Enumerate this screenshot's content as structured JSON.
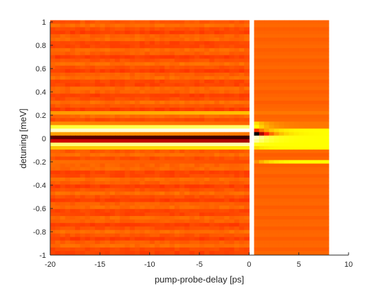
{
  "chart_data": {
    "type": "heatmap",
    "title": "",
    "xlabel": "pump-probe-delay [ps]",
    "ylabel": "detuning [meV]",
    "xlim": [
      -20,
      10
    ],
    "ylim": [
      -1,
      1
    ],
    "xticks": [
      "-20",
      "-15",
      "-10",
      "-5",
      "0",
      "5",
      "10"
    ],
    "yticks": [
      "1",
      "0.8",
      "0.6",
      "0.4",
      "0.2",
      "0",
      "-0.2",
      "-0.4",
      "-0.6",
      "-0.8",
      "-1"
    ],
    "data_x_extent": [
      -20,
      8
    ],
    "gap_x": [
      0,
      0.5
    ],
    "colormap": "hot",
    "grid": false,
    "colors": {
      "background": "#ffffff",
      "axis": "#262626",
      "baseline": "#ff5a12"
    },
    "description_bands": [
      {
        "y": 0.12,
        "pre": 0.52,
        "post": 0.7
      },
      {
        "y": 0.09,
        "pre": 0.86,
        "post": 0.75
      },
      {
        "y": 0.06,
        "pre": 1.0,
        "post": 0.45
      },
      {
        "y": 0.03,
        "pre": 0.55,
        "post": 0.0
      },
      {
        "y": 0.0,
        "pre": 0.08,
        "post": 0.95
      },
      {
        "y": -0.03,
        "pre": 0.25,
        "post": 0.9
      },
      {
        "y": -0.06,
        "pre": 0.92,
        "post": 0.78
      },
      {
        "y": -0.09,
        "pre": 0.72,
        "post": 0.7
      },
      {
        "y": 0.21,
        "pre": 0.66,
        "post": 0.55
      },
      {
        "y": -0.21,
        "pre": 0.48,
        "post": 0.58
      }
    ]
  }
}
